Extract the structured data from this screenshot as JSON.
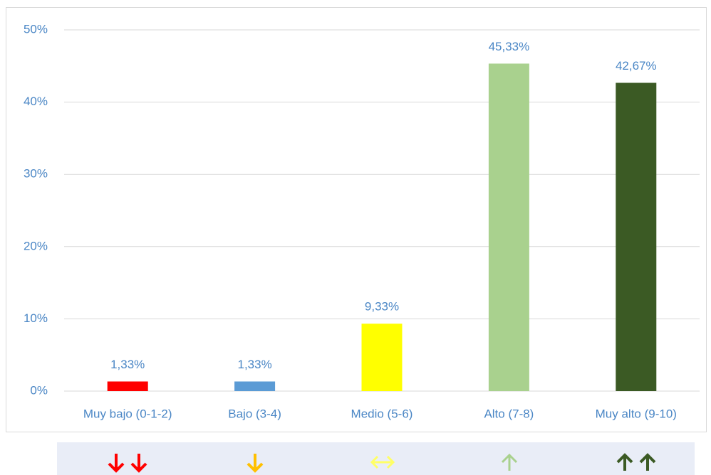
{
  "chart_data": {
    "type": "bar",
    "categories": [
      "Muy bajo (0-1-2)",
      "Bajo (3-4)",
      "Medio (5-6)",
      "Alto (7-8)",
      "Muy alto (9-10)"
    ],
    "values": [
      1.33,
      1.33,
      9.33,
      45.33,
      42.67
    ],
    "value_labels": [
      "1,33%",
      "1,33%",
      "9,33%",
      "45,33%",
      "42,67%"
    ],
    "colors": [
      "#ff0000",
      "#5b9bd5",
      "#ffff00",
      "#a9d18e",
      "#3b5a24"
    ],
    "ylim": [
      0,
      50
    ],
    "yticks": [
      {
        "value": 0,
        "label": "0%"
      },
      {
        "value": 10,
        "label": "10%"
      },
      {
        "value": 20,
        "label": "20%"
      },
      {
        "value": 30,
        "label": "30%"
      },
      {
        "value": 40,
        "label": "40%"
      },
      {
        "value": 50,
        "label": "50%"
      }
    ],
    "grid": true
  }
}
